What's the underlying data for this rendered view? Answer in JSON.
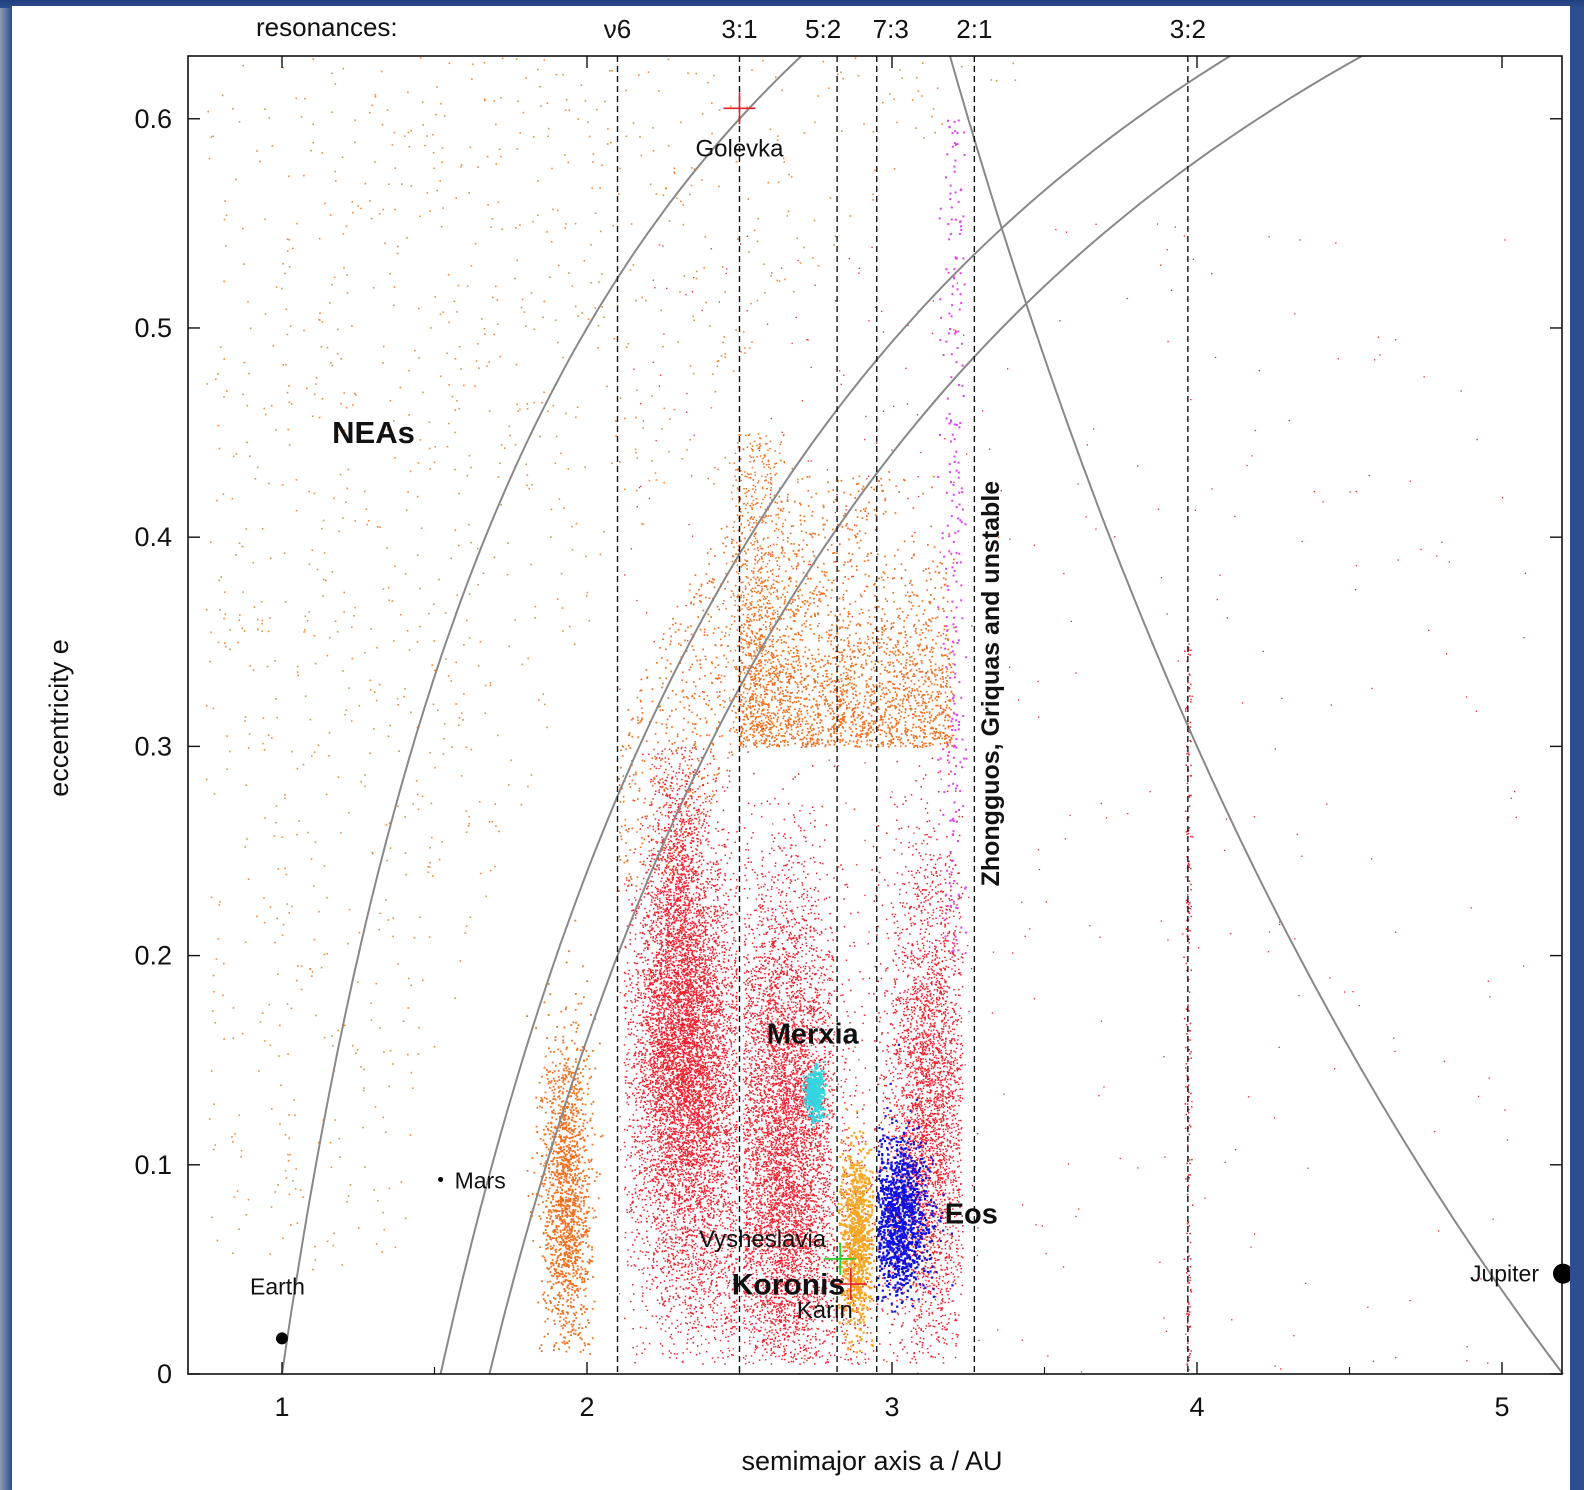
{
  "chart_data": {
    "type": "scatter",
    "title": "",
    "xlabel": "semimajor axis a / AU",
    "ylabel": "eccentricity e",
    "xlim": [
      0.7,
      5.2
    ],
    "ylim": [
      0,
      0.63
    ],
    "x_ticks": [
      "1",
      "2",
      "3",
      "4",
      "5"
    ],
    "y_ticks": [
      "0",
      "0.1",
      "0.2",
      "0.3",
      "0.4",
      "0.5",
      "0.6"
    ],
    "grid": false,
    "legend": "none",
    "resonances_label": "resonances:",
    "resonances": [
      {
        "label": "ν6",
        "a": 2.1
      },
      {
        "label": "3:1",
        "a": 2.5
      },
      {
        "label": "5:2",
        "a": 2.82
      },
      {
        "label": "7:3",
        "a": 2.95
      },
      {
        "label": "2:1",
        "a": 3.27
      },
      {
        "label": "3:2",
        "a": 3.97
      }
    ],
    "crossing_curves": [
      {
        "name": "Earth-crossing",
        "a_over": 1.0,
        "type": "q"
      },
      {
        "name": "Mars-crossing",
        "a_over": 1.52,
        "type": "q"
      },
      {
        "name": "Mars-crossing-aphelion",
        "a_over": 1.68,
        "type": "q"
      },
      {
        "name": "Jupiter-crossing",
        "a_over": 5.2,
        "type": "Q"
      }
    ],
    "bodies": [
      {
        "label": "Earth",
        "a": 1.0,
        "e": 0.017
      },
      {
        "label": "Mars",
        "a": 1.52,
        "e": 0.093
      },
      {
        "label": "Jupiter",
        "a": 5.2,
        "e": 0.048
      }
    ],
    "markers": [
      {
        "label": "Golevka",
        "a": 2.5,
        "e": 0.605,
        "color": "#e0202a"
      },
      {
        "label": "Vysheslavia",
        "a": 2.83,
        "e": 0.055,
        "color": "#22cc22"
      },
      {
        "label": "Karin",
        "a": 2.865,
        "e": 0.043,
        "color": "#e0202a"
      }
    ],
    "families": [
      {
        "label": "Merxia",
        "color": "#33d6e0",
        "cx": 2.745,
        "ce": 0.135
      },
      {
        "label": "Koronis",
        "color": "#f5a623",
        "cx": 2.88,
        "ce": 0.065
      },
      {
        "label": "Eos",
        "color": "#1010e0",
        "cx": 3.02,
        "ce": 0.075
      }
    ],
    "region_labels": {
      "neas": "NEAs",
      "outer": "Zhongguos, Griquas and unstable"
    },
    "colors": {
      "nea": "#ef8a3a",
      "main_belt": "#f0202e",
      "hungaria_like": "#f07020",
      "griquas": "#e040f0",
      "curves": "#888888"
    }
  }
}
